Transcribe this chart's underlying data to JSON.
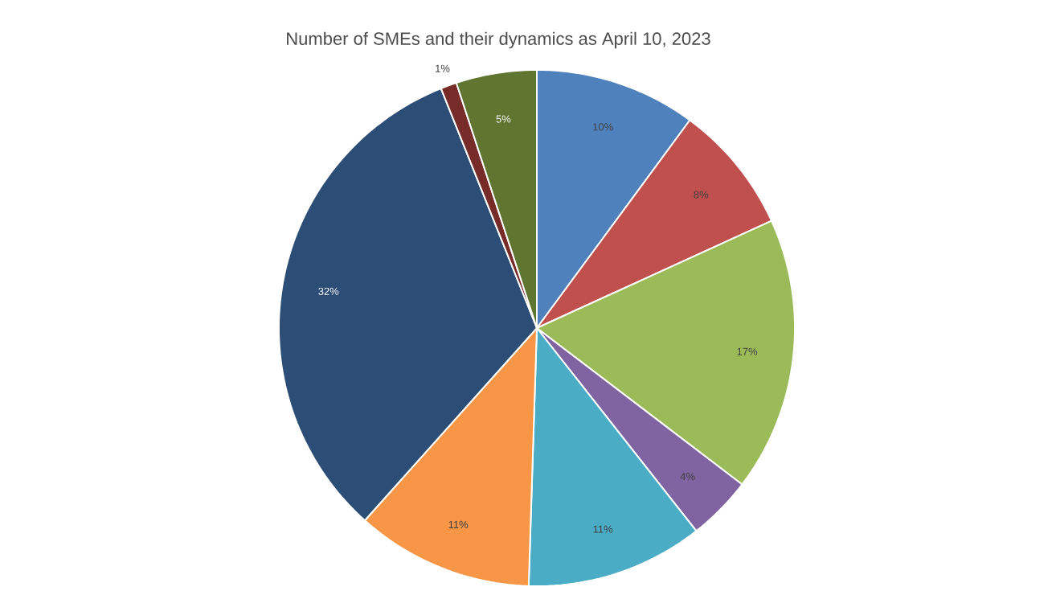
{
  "chart_data": {
    "type": "pie",
    "title": "Number of SMEs and their dynamics as April 10, 2023",
    "categories": [
      null,
      null,
      null,
      null,
      null,
      null,
      null,
      null,
      null
    ],
    "values": [
      10,
      8,
      17,
      4,
      11,
      11,
      32,
      1,
      5
    ],
    "value_labels": [
      "10%",
      "8%",
      "17%",
      "4%",
      "11%",
      "11%",
      "32%",
      "1%",
      "5%"
    ],
    "colors": [
      "#4f81bd",
      "#c0504d",
      "#9bbb59",
      "#8064a2",
      "#4bacc6",
      "#f79646",
      "#2c4d75",
      "#772c2a",
      "#5f7530"
    ]
  }
}
